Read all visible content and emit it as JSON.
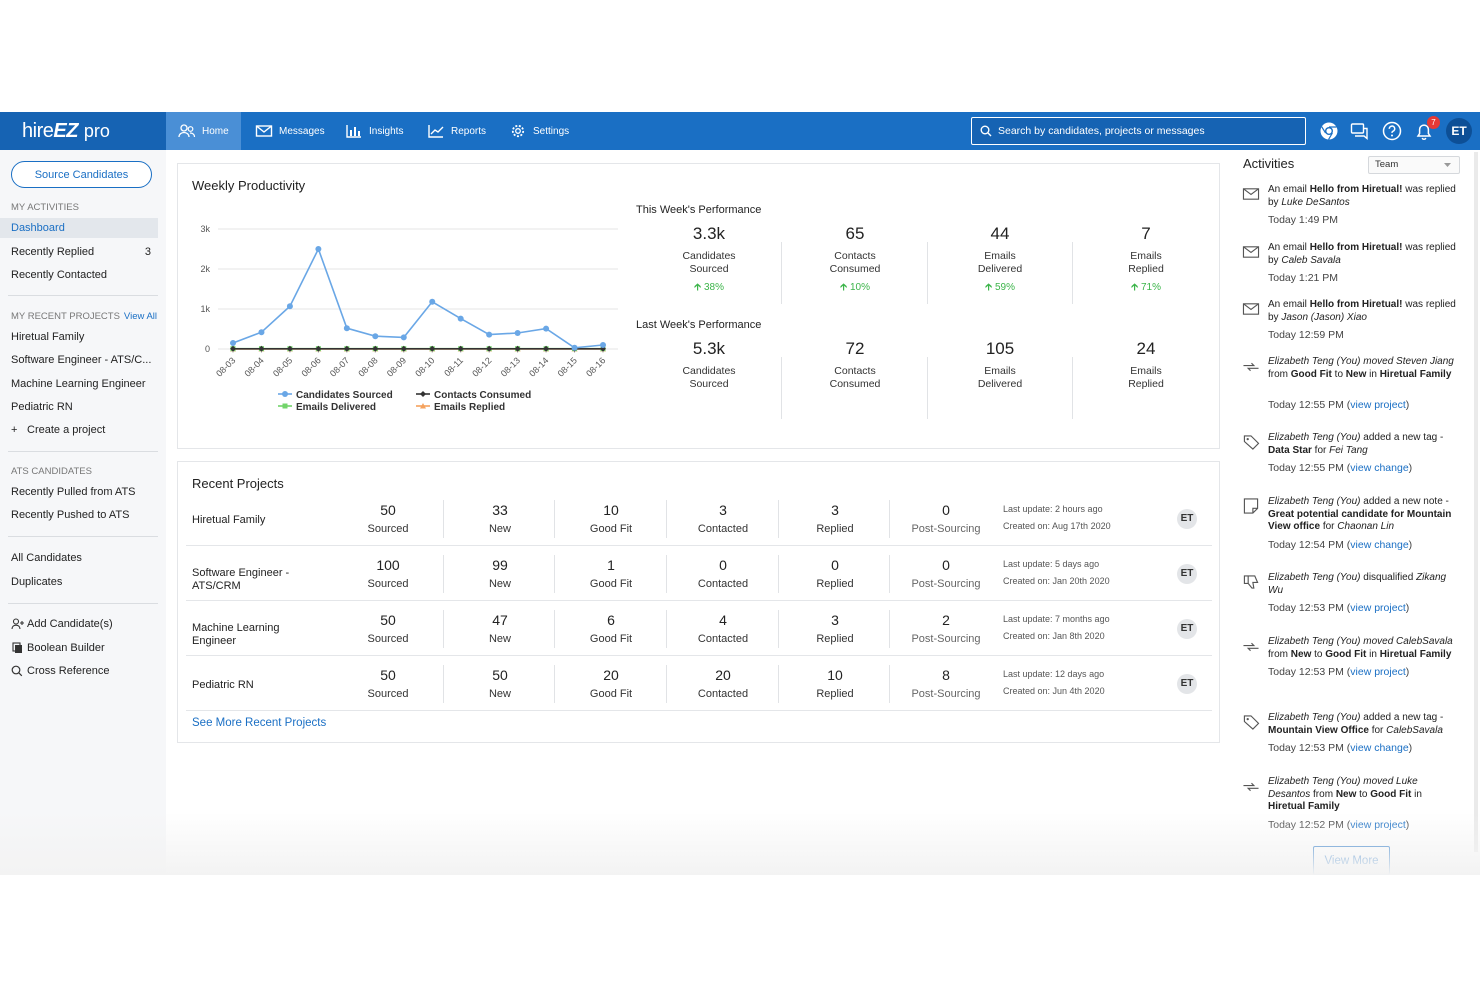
{
  "header": {
    "logo": {
      "part1": "hire",
      "part2": "EZ",
      "part3": "pro"
    },
    "nav": [
      {
        "label": "Home",
        "icon": "users-icon"
      },
      {
        "label": "Messages",
        "icon": "envelope-icon"
      },
      {
        "label": "Insights",
        "icon": "bar-chart-icon"
      },
      {
        "label": "Reports",
        "icon": "line-chart-icon"
      },
      {
        "label": "Settings",
        "icon": "gear-icon"
      }
    ],
    "search_placeholder": "Search by candidates, projects or messages",
    "notifications_count": "7",
    "user_initials": "ET"
  },
  "sidebar": {
    "source_button": "Source Candidates",
    "my_activities_heading": "MY ACTIVITIES",
    "activities": [
      {
        "label": "Dashboard",
        "count": ""
      },
      {
        "label": "Recently Replied",
        "count": "3"
      },
      {
        "label": "Recently Contacted",
        "count": ""
      }
    ],
    "projects_heading": "MY RECENT PROJECTS",
    "view_all": "View All",
    "projects": [
      "Hiretual Family",
      "Software Engineer - ATS/C...",
      "Machine Learning Engineer",
      "Pediatric RN"
    ],
    "create_project": "Create a project",
    "ats_heading": "ATS CANDIDATES",
    "ats_items": [
      "Recently Pulled from ATS",
      "Recently Pushed to ATS"
    ],
    "other_items": [
      "All Candidates",
      "Duplicates"
    ],
    "tools": [
      {
        "label": "Add Candidate(s)",
        "icon": "add-user-icon"
      },
      {
        "label": "Boolean Builder",
        "icon": "copy-icon"
      },
      {
        "label": "Cross Reference",
        "icon": "search-icon"
      }
    ]
  },
  "weekly": {
    "title": "Weekly Productivity",
    "this_week_heading": "This Week's Performance",
    "this_week": [
      {
        "value": "3.3k",
        "label1": "Candidates",
        "label2": "Sourced",
        "change": "38%"
      },
      {
        "value": "65",
        "label1": "Contacts",
        "label2": "Consumed",
        "change": "10%"
      },
      {
        "value": "44",
        "label1": "Emails",
        "label2": "Delivered",
        "change": "59%"
      },
      {
        "value": "7",
        "label1": "Emails",
        "label2": "Replied",
        "change": "71%"
      }
    ],
    "last_week_heading": "Last Week's Performance",
    "last_week": [
      {
        "value": "5.3k",
        "label1": "Candidates",
        "label2": "Sourced"
      },
      {
        "value": "72",
        "label1": "Contacts",
        "label2": "Consumed"
      },
      {
        "value": "105",
        "label1": "Emails",
        "label2": "Delivered"
      },
      {
        "value": "24",
        "label1": "Emails",
        "label2": "Replied"
      }
    ]
  },
  "chart_data": {
    "type": "line",
    "x": [
      "08-03",
      "08-04",
      "08-05",
      "08-06",
      "08-07",
      "08-08",
      "08-09",
      "08-10",
      "08-11",
      "08-12",
      "08-13",
      "08-14",
      "08-15",
      "08-16"
    ],
    "yticks": [
      "0",
      "1k",
      "2k",
      "3k"
    ],
    "ylim": [
      0,
      3000
    ],
    "grid": true,
    "legend_position": "bottom",
    "series": [
      {
        "name": "Candidates Sourced",
        "color": "#6aa7e6",
        "values": [
          150,
          420,
          1070,
          2500,
          520,
          320,
          290,
          1180,
          760,
          360,
          400,
          510,
          30,
          100
        ]
      },
      {
        "name": "Contacts Consumed",
        "color": "#333333",
        "values": [
          5,
          5,
          5,
          5,
          5,
          5,
          5,
          5,
          5,
          5,
          5,
          5,
          5,
          5
        ]
      },
      {
        "name": "Emails Delivered",
        "color": "#72d46a",
        "values": [
          8,
          8,
          8,
          8,
          8,
          8,
          8,
          8,
          8,
          8,
          8,
          8,
          8,
          8
        ]
      },
      {
        "name": "Emails Replied",
        "color": "#f5a25d",
        "values": [
          2,
          2,
          2,
          2,
          2,
          2,
          2,
          2,
          2,
          2,
          2,
          2,
          2,
          2
        ]
      }
    ]
  },
  "recent": {
    "title": "Recent Projects",
    "projects": [
      {
        "name": "Hiretual Family",
        "sourced": "50",
        "new": "33",
        "good_fit": "10",
        "contacted": "3",
        "replied": "3",
        "post_sourcing": "0",
        "last_update": "Last update: 2 hours ago",
        "created": "Created on: Aug 17th 2020",
        "owner": "ET"
      },
      {
        "name": "Software Engineer - ATS/CRM",
        "sourced": "100",
        "new": "99",
        "good_fit": "1",
        "contacted": "0",
        "replied": "0",
        "post_sourcing": "0",
        "last_update": "Last update: 5 days ago",
        "created": "Created on: Jan 20th 2020",
        "owner": "ET"
      },
      {
        "name": "Machine Learning Engineer",
        "sourced": "50",
        "new": "47",
        "good_fit": "6",
        "contacted": "4",
        "replied": "3",
        "post_sourcing": "2",
        "last_update": "Last update: 7 months ago",
        "created": "Created on: Jan 8th 2020",
        "owner": "ET"
      },
      {
        "name": "Pediatric RN",
        "sourced": "50",
        "new": "50",
        "good_fit": "20",
        "contacted": "20",
        "replied": "10",
        "post_sourcing": "8",
        "last_update": "Last update: 12 days ago",
        "created": "Created on: Jun 4th 2020",
        "owner": "ET"
      }
    ],
    "labels": {
      "sourced": "Sourced",
      "new": "New",
      "good_fit": "Good Fit",
      "contacted": "Contacted",
      "replied": "Replied",
      "post_sourcing": "Post-Sourcing"
    },
    "see_more": "See More Recent Projects"
  },
  "activities": {
    "title": "Activities",
    "filter": "Team",
    "view_more": "View More",
    "items": [
      {
        "icon": "envelope-icon",
        "html": "An email <b>Hello from Hiretual!</b> was replied by <i>Luke DeSantos</i>",
        "time": "Today 1:49 PM",
        "link": ""
      },
      {
        "icon": "envelope-icon",
        "html": "An email <b>Hello from Hiretual!</b> was replied by <i>Caleb Savala</i>",
        "time": "Today 1:21 PM",
        "link": ""
      },
      {
        "icon": "envelope-icon",
        "html": "An email <b>Hello from Hiretual!</b> was replied by <i>Jason (Jason) Xiao</i>",
        "time": "Today 12:59 PM",
        "link": ""
      },
      {
        "icon": "move-icon",
        "html": "<i>Elizabeth Teng (You) moved Steven Jiang</i> from <b>Good Fit</b> to <b>New</b> in <b>Hiretual Family</b>",
        "time": "Today 12:55 PM (",
        "link": "view project"
      },
      {
        "icon": "tag-icon",
        "html": "<i>Elizabeth Teng (You)</i> added a new tag - <b>Data Star</b> for <i>Fei Tang</i>",
        "time": "Today 12:55 PM (",
        "link": "view change"
      },
      {
        "icon": "note-icon",
        "html": "<i>Elizabeth Teng (You)</i> added a new note - <b>Great potential candidate for Mountain View office</b> for <i>Chaonan Lin</i>",
        "time": "Today 12:54 PM (",
        "link": "view change"
      },
      {
        "icon": "thumbs-down-icon",
        "html": "<i>Elizabeth Teng (You)</i> disqualified <i>Zikang Wu</i>",
        "time": "Today 12:53 PM (",
        "link": "view project"
      },
      {
        "icon": "move-icon",
        "html": "<i>Elizabeth Teng (You) moved CalebSavala</i> from <b>New</b> to <b>Good Fit</b> in <b>Hiretual Family</b>",
        "time": "Today 12:53 PM (",
        "link": "view project"
      },
      {
        "icon": "tag-icon",
        "html": "<i>Elizabeth Teng (You)</i> added a new tag - <b>Mountain View Office</b> for <i>CalebSavala</i>",
        "time": "Today 12:53 PM (",
        "link": "view change"
      },
      {
        "icon": "move-icon",
        "html": "<i>Elizabeth Teng (You) moved Luke Desantos</i> from <b>New</b> to <b>Good Fit</b> in <b>Hiretual Family</b>",
        "time": "Today 12:52 PM (",
        "link": "view project"
      }
    ]
  }
}
